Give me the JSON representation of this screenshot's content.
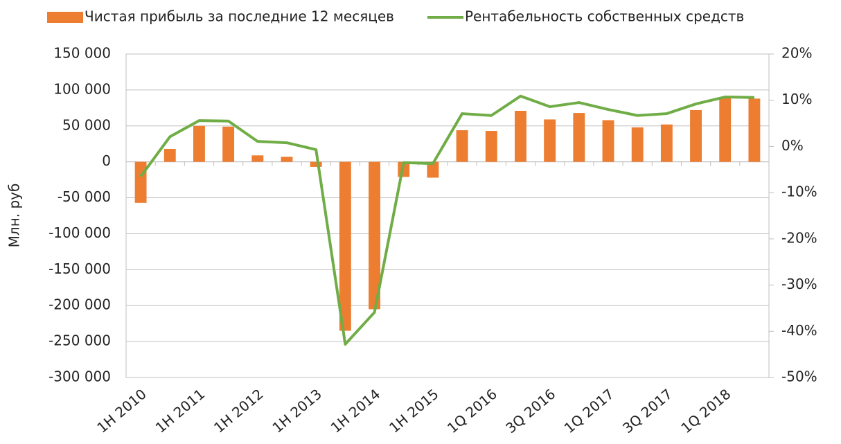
{
  "chart_data": {
    "type": "bar_line",
    "y_axis_label": "Млн. руб",
    "categories": [
      "1H 2010",
      null,
      "1H 2011",
      null,
      "1H 2012",
      null,
      "1H 2013",
      null,
      "1H 2014",
      null,
      "1H 2015",
      null,
      "1Q 2016",
      null,
      "3Q 2016",
      null,
      "1Q 2017",
      null,
      "3Q 2017",
      null,
      "1Q 2018",
      null
    ],
    "series": [
      {
        "name": "Чистая прибыль за последние 12 месяцев",
        "type": "bar",
        "color": "#ed7d31",
        "values": [
          -57000,
          18000,
          50000,
          49000,
          9000,
          7000,
          -7000,
          -235000,
          -205000,
          -21000,
          -22000,
          44000,
          43000,
          71000,
          59000,
          68000,
          58000,
          48000,
          52000,
          72000,
          89000,
          88000
        ]
      },
      {
        "name": "Рентабельность собственных средств",
        "type": "line",
        "axis": "y2",
        "color": "#70ad47",
        "values": [
          -6.5,
          2.1,
          5.6,
          5.5,
          1.1,
          0.8,
          -0.7,
          -42.8,
          -35.9,
          -3.5,
          -3.7,
          7.1,
          6.7,
          10.9,
          8.6,
          9.5,
          8.0,
          6.7,
          7.1,
          9.2,
          10.7,
          10.6
        ]
      }
    ],
    "ylim": [
      -300000,
      150000
    ],
    "yticks": [
      {
        "value": -300000,
        "label": "-300 000"
      },
      {
        "value": -250000,
        "label": "-250 000"
      },
      {
        "value": -200000,
        "label": "-200 000"
      },
      {
        "value": -150000,
        "label": "-150 000"
      },
      {
        "value": -100000,
        "label": "-100 000"
      },
      {
        "value": -50000,
        "label": "-50 000"
      },
      0,
      {
        "value": 50000,
        "label": "50 000"
      },
      {
        "value": 100000,
        "label": "100 000"
      },
      {
        "value": 150000,
        "label": "150 000"
      }
    ],
    "y2lim": [
      -50,
      20
    ],
    "y2ticks": [
      {
        "value": -50,
        "label": "-50%"
      },
      {
        "value": -40,
        "label": "-40%"
      },
      {
        "value": -30,
        "label": "-30%"
      },
      {
        "value": -20,
        "label": "-20%"
      },
      {
        "value": -10,
        "label": "-10%"
      },
      {
        "value": 0,
        "label": "0%"
      },
      {
        "value": 10,
        "label": "10%"
      },
      {
        "value": 20,
        "label": "20%"
      }
    ],
    "grid": true,
    "legend": "top"
  }
}
